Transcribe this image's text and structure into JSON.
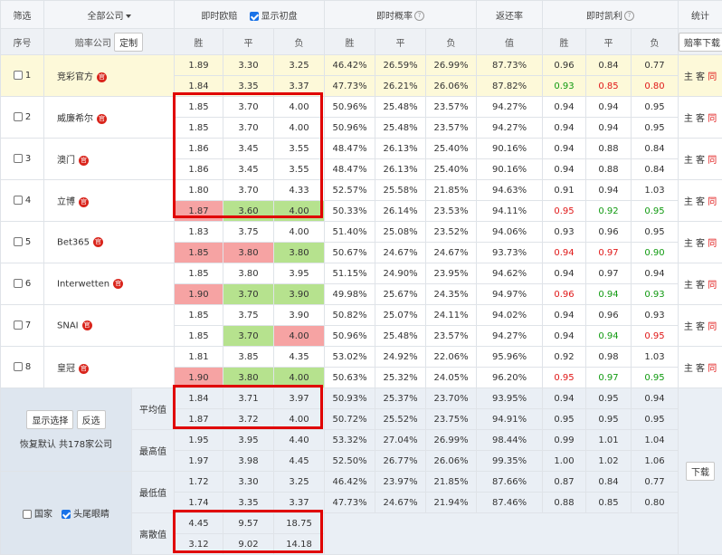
{
  "header": {
    "filter": "筛选",
    "company_filter": "全部公司",
    "instant": "即时欧赔",
    "show_initial": "显示初盘",
    "prob": "即时概率",
    "return_rate": "返还率",
    "kelly": "即时凯利",
    "stats": "统计",
    "seq": "序号",
    "company": "赔率公司",
    "customize": "定制",
    "win": "胜",
    "draw": "平",
    "lose": "负",
    "value": "值",
    "download_odds": "赔率下载"
  },
  "companies": [
    {
      "no": "1",
      "name": "竞彩官方",
      "badge": "官",
      "rows": [
        {
          "odds": [
            "1.89",
            "3.30",
            "3.25"
          ],
          "prob": [
            "46.42%",
            "26.59%",
            "26.99%"
          ],
          "ret": "87.73%",
          "kelly": [
            "0.96",
            "0.84",
            "0.77"
          ]
        },
        {
          "odds": [
            "1.84",
            "3.35",
            "3.37"
          ],
          "prob": [
            "47.73%",
            "26.21%",
            "26.06%"
          ],
          "ret": "87.82%",
          "kelly": [
            "0.93",
            "0.85",
            "0.80"
          ]
        }
      ]
    },
    {
      "no": "2",
      "name": "威廉希尔",
      "badge": "官",
      "rows": [
        {
          "odds": [
            "1.85",
            "3.70",
            "4.00"
          ],
          "prob": [
            "50.96%",
            "25.48%",
            "23.57%"
          ],
          "ret": "94.27%",
          "kelly": [
            "0.94",
            "0.94",
            "0.95"
          ]
        },
        {
          "odds": [
            "1.85",
            "3.70",
            "4.00"
          ],
          "prob": [
            "50.96%",
            "25.48%",
            "23.57%"
          ],
          "ret": "94.27%",
          "kelly": [
            "0.94",
            "0.94",
            "0.95"
          ]
        }
      ]
    },
    {
      "no": "3",
      "name": "澳门",
      "badge": "官",
      "rows": [
        {
          "odds": [
            "1.86",
            "3.45",
            "3.55"
          ],
          "prob": [
            "48.47%",
            "26.13%",
            "25.40%"
          ],
          "ret": "90.16%",
          "kelly": [
            "0.94",
            "0.88",
            "0.84"
          ]
        },
        {
          "odds": [
            "1.86",
            "3.45",
            "3.55"
          ],
          "prob": [
            "48.47%",
            "26.13%",
            "25.40%"
          ],
          "ret": "90.16%",
          "kelly": [
            "0.94",
            "0.88",
            "0.84"
          ]
        }
      ]
    },
    {
      "no": "4",
      "name": "立博",
      "badge": "官",
      "rows": [
        {
          "odds": [
            "1.80",
            "3.70",
            "4.33"
          ],
          "prob": [
            "52.57%",
            "25.58%",
            "21.85%"
          ],
          "ret": "94.63%",
          "kelly": [
            "0.91",
            "0.94",
            "1.03"
          ]
        },
        {
          "odds": [
            "1.87",
            "3.60",
            "4.00"
          ],
          "prob": [
            "50.33%",
            "26.14%",
            "23.53%"
          ],
          "ret": "94.11%",
          "kelly": [
            "0.95",
            "0.92",
            "0.95"
          ]
        }
      ]
    },
    {
      "no": "5",
      "name": "Bet365",
      "badge": "官",
      "rows": [
        {
          "odds": [
            "1.83",
            "3.75",
            "4.00"
          ],
          "prob": [
            "51.40%",
            "25.08%",
            "23.52%"
          ],
          "ret": "94.06%",
          "kelly": [
            "0.93",
            "0.96",
            "0.95"
          ]
        },
        {
          "odds": [
            "1.85",
            "3.80",
            "3.80"
          ],
          "prob": [
            "50.67%",
            "24.67%",
            "24.67%"
          ],
          "ret": "93.73%",
          "kelly": [
            "0.94",
            "0.97",
            "0.90"
          ]
        }
      ]
    },
    {
      "no": "6",
      "name": "Interwetten",
      "badge": "官",
      "rows": [
        {
          "odds": [
            "1.85",
            "3.80",
            "3.95"
          ],
          "prob": [
            "51.15%",
            "24.90%",
            "23.95%"
          ],
          "ret": "94.62%",
          "kelly": [
            "0.94",
            "0.97",
            "0.94"
          ]
        },
        {
          "odds": [
            "1.90",
            "3.70",
            "3.90"
          ],
          "prob": [
            "49.98%",
            "25.67%",
            "24.35%"
          ],
          "ret": "94.97%",
          "kelly": [
            "0.96",
            "0.94",
            "0.93"
          ]
        }
      ]
    },
    {
      "no": "7",
      "name": "SNAI",
      "badge": "官",
      "rows": [
        {
          "odds": [
            "1.85",
            "3.75",
            "3.90"
          ],
          "prob": [
            "50.82%",
            "25.07%",
            "24.11%"
          ],
          "ret": "94.02%",
          "kelly": [
            "0.94",
            "0.96",
            "0.93"
          ]
        },
        {
          "odds": [
            "1.85",
            "3.70",
            "4.00"
          ],
          "prob": [
            "50.96%",
            "25.48%",
            "23.57%"
          ],
          "ret": "94.27%",
          "kelly": [
            "0.94",
            "0.94",
            "0.95"
          ]
        }
      ]
    },
    {
      "no": "8",
      "name": "皇冠",
      "badge": "官",
      "rows": [
        {
          "odds": [
            "1.81",
            "3.85",
            "4.35"
          ],
          "prob": [
            "53.02%",
            "24.92%",
            "22.06%"
          ],
          "ret": "95.96%",
          "kelly": [
            "0.92",
            "0.98",
            "1.03"
          ]
        },
        {
          "odds": [
            "1.90",
            "3.80",
            "4.00"
          ],
          "prob": [
            "50.63%",
            "25.32%",
            "24.05%"
          ],
          "ret": "96.20%",
          "kelly": [
            "0.95",
            "0.97",
            "0.95"
          ]
        }
      ]
    }
  ],
  "trend": {
    "home": "主",
    "away": "客",
    "same": "同"
  },
  "stats": [
    {
      "label": "平均值",
      "rows": [
        {
          "odds": [
            "1.84",
            "3.71",
            "3.97"
          ],
          "prob": [
            "50.93%",
            "25.37%",
            "23.70%"
          ],
          "ret": "93.95%",
          "kelly": [
            "0.94",
            "0.95",
            "0.94"
          ]
        },
        {
          "odds": [
            "1.87",
            "3.72",
            "4.00"
          ],
          "prob": [
            "50.72%",
            "25.52%",
            "23.75%"
          ],
          "ret": "94.91%",
          "kelly": [
            "0.95",
            "0.95",
            "0.95"
          ]
        }
      ]
    },
    {
      "label": "最高值",
      "rows": [
        {
          "odds": [
            "1.95",
            "3.95",
            "4.40"
          ],
          "prob": [
            "53.32%",
            "27.04%",
            "26.99%"
          ],
          "ret": "98.44%",
          "kelly": [
            "0.99",
            "1.01",
            "1.04"
          ]
        },
        {
          "odds": [
            "1.97",
            "3.98",
            "4.45"
          ],
          "prob": [
            "52.50%",
            "26.77%",
            "26.06%"
          ],
          "ret": "99.35%",
          "kelly": [
            "1.00",
            "1.02",
            "1.06"
          ]
        }
      ]
    },
    {
      "label": "最低值",
      "rows": [
        {
          "odds": [
            "1.72",
            "3.30",
            "3.25"
          ],
          "prob": [
            "46.42%",
            "23.97%",
            "21.85%"
          ],
          "ret": "87.66%",
          "kelly": [
            "0.87",
            "0.84",
            "0.77"
          ]
        },
        {
          "odds": [
            "1.74",
            "3.35",
            "3.37"
          ],
          "prob": [
            "47.73%",
            "24.67%",
            "21.94%"
          ],
          "ret": "87.46%",
          "kelly": [
            "0.88",
            "0.85",
            "0.80"
          ]
        }
      ]
    },
    {
      "label": "离散值",
      "rows": [
        {
          "odds": [
            "4.45",
            "9.57",
            "18.75"
          ]
        },
        {
          "odds": [
            "3.12",
            "9.02",
            "14.18"
          ]
        }
      ]
    }
  ],
  "panel": {
    "show_selected": "显示选择",
    "invert": "反选",
    "restore": "恢复默认",
    "total": "共178家公司",
    "country": "国家",
    "head_tail": "头尾眼睛",
    "download": "下载"
  }
}
